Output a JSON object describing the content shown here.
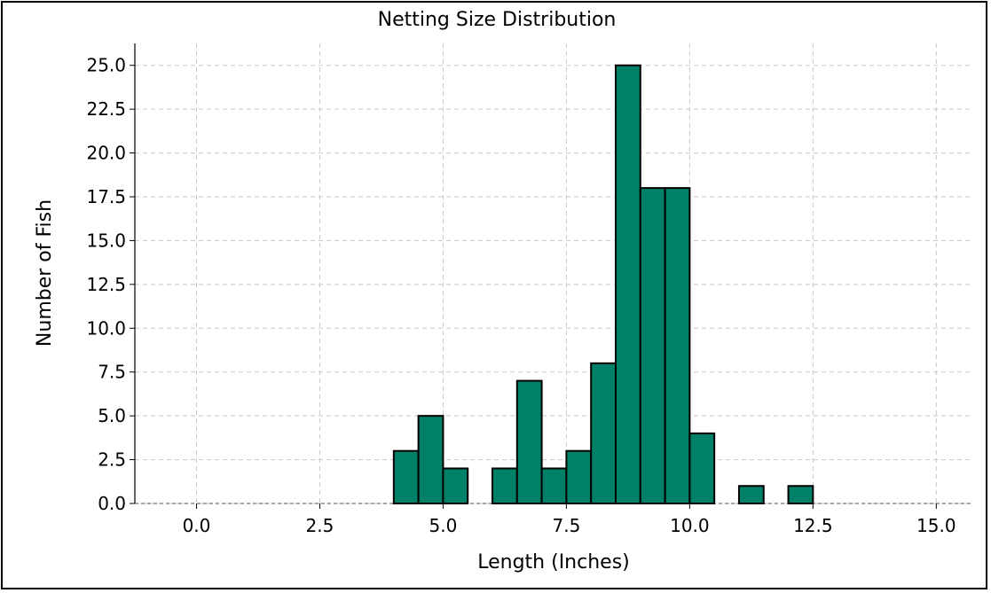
{
  "chart_data": {
    "type": "bar",
    "title": "Netting Size Distribution",
    "xlabel": "Length (Inches)",
    "ylabel": "Number of Fish",
    "xlim": [
      -1.25,
      15.75
    ],
    "ylim": [
      0,
      26.25
    ],
    "xticks": [
      "0.0",
      "2.5",
      "5.0",
      "7.5",
      "10.0",
      "12.5",
      "15.0"
    ],
    "yticks": [
      "0.0",
      "2.5",
      "5.0",
      "7.5",
      "10.0",
      "12.5",
      "15.0",
      "17.5",
      "20.0",
      "22.5",
      "25.0"
    ],
    "bin_width": 0.5,
    "bins": [
      {
        "x": 4.25,
        "count": 3
      },
      {
        "x": 4.75,
        "count": 5
      },
      {
        "x": 5.25,
        "count": 2
      },
      {
        "x": 6.25,
        "count": 2
      },
      {
        "x": 6.75,
        "count": 7
      },
      {
        "x": 7.25,
        "count": 2
      },
      {
        "x": 7.75,
        "count": 3
      },
      {
        "x": 8.25,
        "count": 8
      },
      {
        "x": 8.75,
        "count": 25
      },
      {
        "x": 9.25,
        "count": 18
      },
      {
        "x": 9.75,
        "count": 18
      },
      {
        "x": 10.25,
        "count": 4
      },
      {
        "x": 11.25,
        "count": 1
      },
      {
        "x": 12.25,
        "count": 1
      }
    ],
    "bar_color": "#008066",
    "edge_color": "#000000",
    "grid": true
  }
}
